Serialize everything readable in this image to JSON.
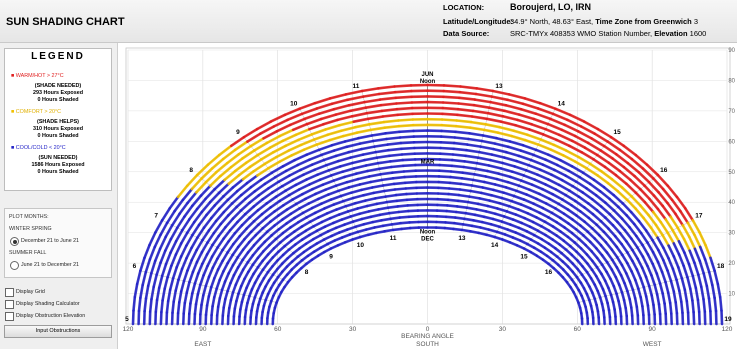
{
  "app": {
    "title": "SUN SHADING CHART"
  },
  "location": {
    "location_label": "LOCATION:",
    "location_value": "Boroujerd, LO, IRN",
    "latlon_label": "Latitude/Longitude:",
    "latlon_value": "34.9° North, 48.63° East, ",
    "timezone_label": "Time Zone from Greenwich",
    "timezone_value": "3",
    "source_label": "Data Source:",
    "source_value": "SRC-TMYx   408353 WMO Station Number, ",
    "elevation_label": "Elevation",
    "elevation_value": "1600"
  },
  "legend": {
    "title": "LEGEND",
    "warm": {
      "label": "WARM/HOT > 27°C",
      "need": "(SHADE NEEDED)",
      "exposed": "293 Hours Exposed",
      "shaded": "0 Hours Shaded",
      "color": "#e01e1e"
    },
    "comfort": {
      "label": "COMFORT > 20°C",
      "need": "(SHADE HELPS)",
      "exposed": "310 Hours Exposed",
      "shaded": "0 Hours Shaded",
      "color": "#f0c000"
    },
    "cool": {
      "label": "COOL/COLD < 20°C",
      "need": "(SUN NEEDED)",
      "exposed": "1586 Hours Exposed",
      "shaded": "0 Hours Shaded",
      "color": "#2424c8"
    }
  },
  "plot_months": {
    "title": "PLOT MONTHS:",
    "group1": "WINTER SPRING",
    "option1": "December 21 to June 21",
    "group2": "SUMMER FALL",
    "option2": "June 21 to December 21",
    "selected": "option1"
  },
  "options": {
    "display_grid": "Display Grid",
    "display_shading_calculator": "Display Shading Calculator",
    "display_obstruction_elevation": "Display Obstruction Elevation",
    "input_obstructions": "Input Obstructions"
  },
  "chart_data": {
    "type": "scatter",
    "title": "",
    "xlabel": "BEARING ANGLE",
    "ylabel": "",
    "x_ticks": [
      "120",
      "90",
      "60",
      "30",
      "0",
      "30",
      "60",
      "90",
      "120"
    ],
    "y_ticks": [
      "10",
      "20",
      "30",
      "40",
      "50",
      "60",
      "70",
      "80",
      "90"
    ],
    "xlim": [
      -120,
      120
    ],
    "ylim": [
      0,
      90
    ],
    "direction_labels": [
      "EAST",
      "SOUTH",
      "WEST"
    ],
    "date_labels": [
      {
        "text": "JUN",
        "sub": "Noon"
      },
      {
        "text": "MAR"
      },
      {
        "text": "Noon",
        "sub": "DEC"
      }
    ],
    "outer_hour_labels": [
      "5",
      "6",
      "7",
      "8",
      "9",
      "10",
      "11",
      "13",
      "14",
      "15",
      "16",
      "17",
      "18",
      "19"
    ],
    "inner_hour_labels": [
      "8",
      "9",
      "10",
      "11",
      "13",
      "14",
      "15",
      "16"
    ],
    "sun_paths": {
      "count": 26,
      "summer_solstice": {
        "altitude_noon": 78.5,
        "sunrise_azimuth": -118
      },
      "equinox": {
        "altitude_noon": 55,
        "sunrise_azimuth": -90
      },
      "winter_solstice": {
        "altitude_noon": 31.7,
        "sunrise_azimuth": -62
      }
    },
    "legend": [
      "WARM/HOT > 27°C",
      "COMFORT > 20°C",
      "COOL/COLD < 20°C"
    ],
    "grid": true
  }
}
